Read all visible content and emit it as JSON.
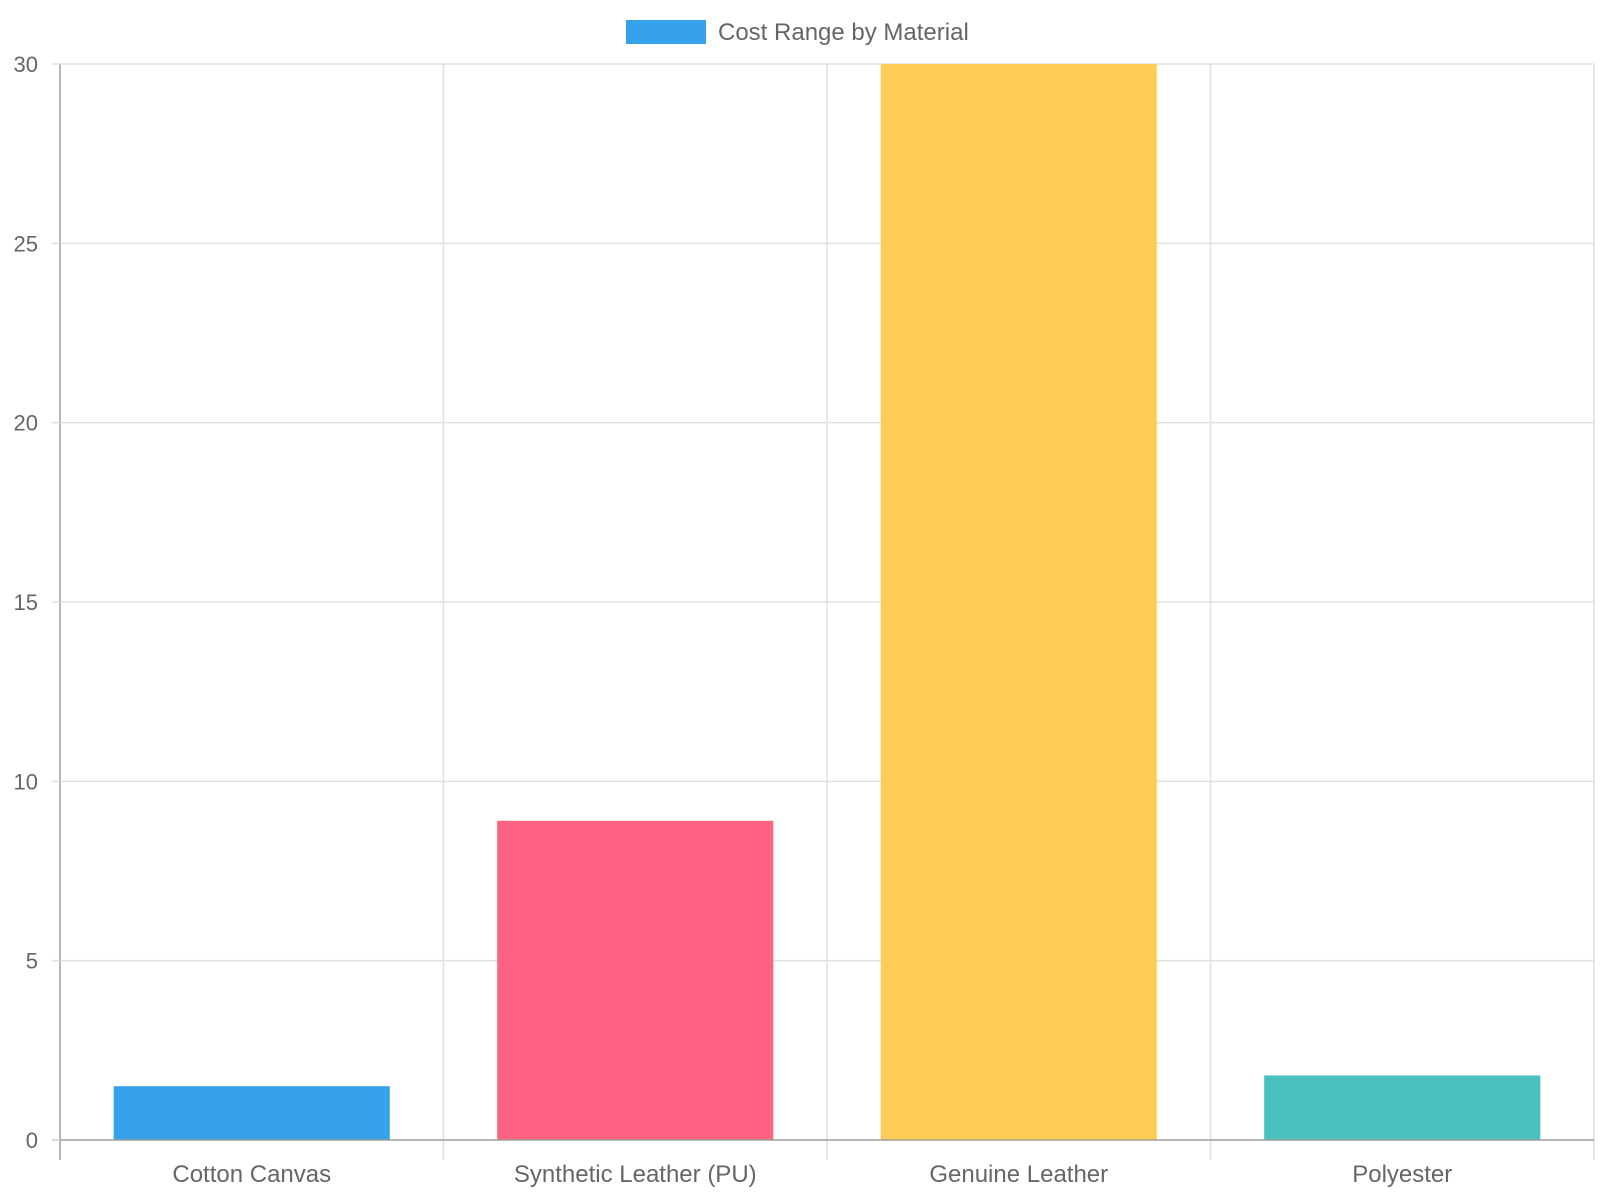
{
  "chart_data": {
    "type": "bar",
    "categories": [
      "Cotton Canvas",
      "Synthetic Leather (PU)",
      "Genuine Leather",
      "Polyester"
    ],
    "series": [
      {
        "name": "Cost Range by Material",
        "values": [
          1.5,
          8.9,
          30,
          1.8
        ],
        "colors": [
          "#36a2eb",
          "#ff6384",
          "#ffcd56",
          "#4bc0c0"
        ]
      }
    ],
    "legend": {
      "label": "Cost Range by Material",
      "swatch_color": "#36a2eb",
      "position": "top"
    },
    "title": "",
    "xlabel": "",
    "ylabel": "",
    "ylim": [
      0,
      30
    ],
    "yticks": [
      0,
      5,
      10,
      15,
      20,
      25,
      30
    ],
    "grid": true
  },
  "colors": {
    "grid": "#e0e0e0",
    "axis": "#9e9e9e",
    "text": "#666666"
  }
}
